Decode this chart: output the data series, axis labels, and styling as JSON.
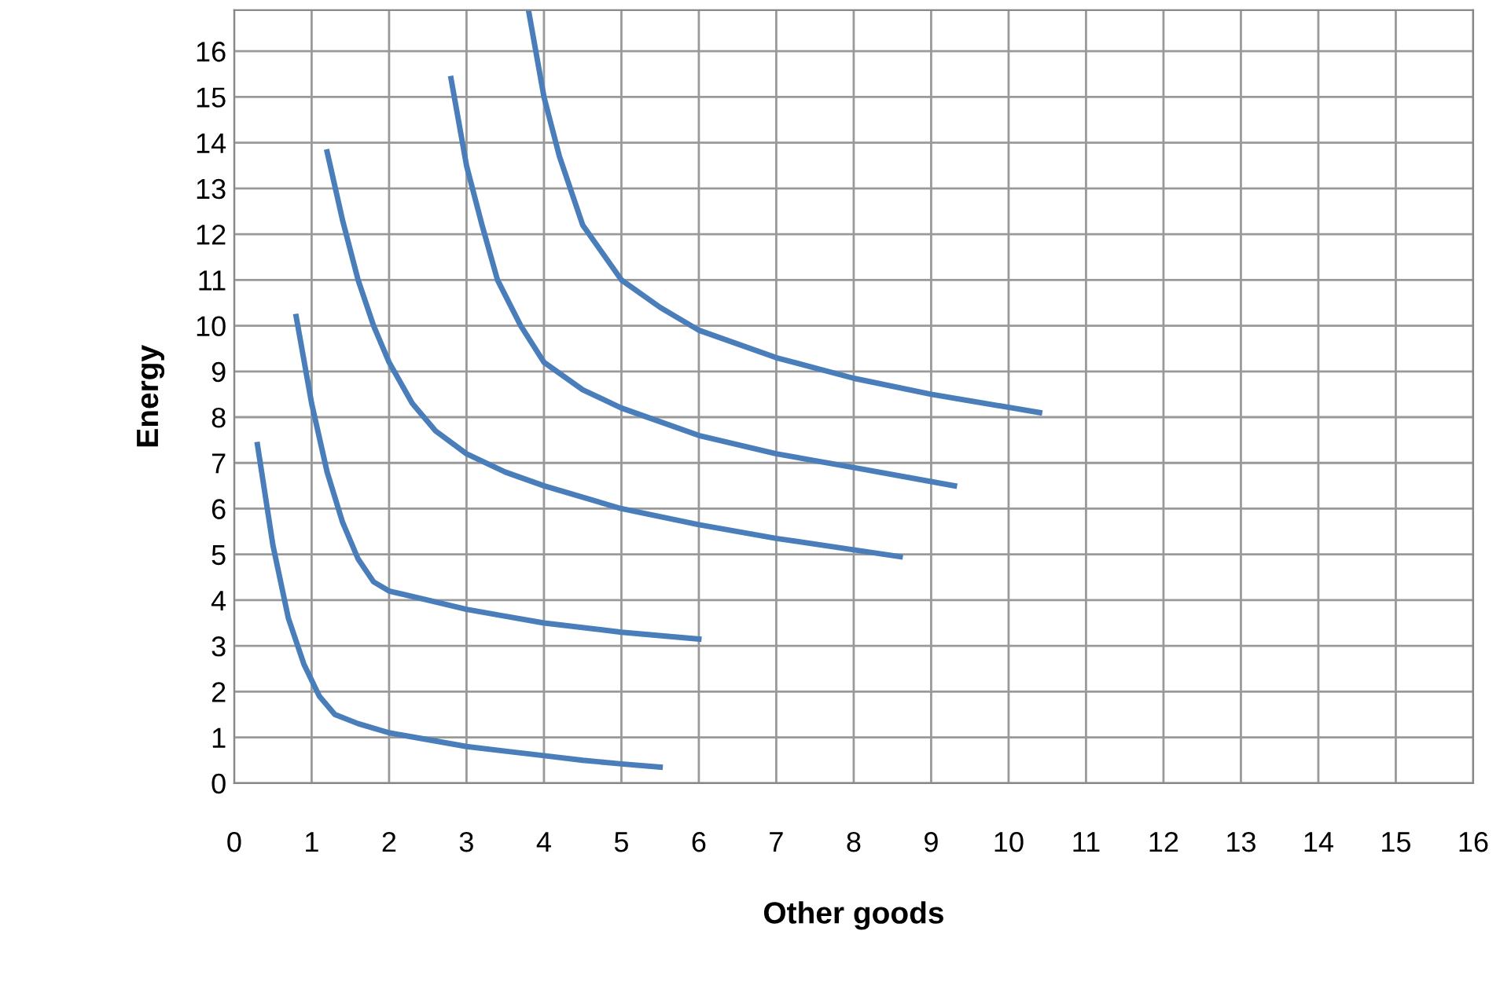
{
  "chart_data": {
    "type": "line",
    "xlabel": "Other goods",
    "ylabel": "Energy",
    "xlim": [
      0,
      16
    ],
    "ylim": [
      0,
      16.9
    ],
    "xticks": [
      0,
      1,
      2,
      3,
      4,
      5,
      6,
      7,
      8,
      9,
      10,
      11,
      12,
      13,
      14,
      15,
      16
    ],
    "yticks": [
      0,
      1,
      2,
      3,
      4,
      5,
      6,
      7,
      8,
      9,
      10,
      11,
      12,
      13,
      14,
      15,
      16
    ],
    "grid": true,
    "marker": "none",
    "line_style": "solid",
    "series": [
      {
        "color": "#4a7ebb",
        "x": [
          0.3,
          0.5,
          0.7,
          0.9,
          1.1,
          1.3,
          1.6,
          2,
          2.5,
          3,
          3.5,
          4,
          4.5,
          5,
          5.5
        ],
        "values": [
          7.4,
          5.2,
          3.6,
          2.6,
          1.9,
          1.5,
          1.3,
          1.1,
          0.95,
          0.8,
          0.7,
          0.6,
          0.5,
          0.42,
          0.35
        ]
      },
      {
        "color": "#4a7ebb",
        "x": [
          0.8,
          1.0,
          1.2,
          1.4,
          1.6,
          1.8,
          2,
          2.5,
          3,
          3.5,
          4,
          5,
          6
        ],
        "values": [
          10.2,
          8.3,
          6.8,
          5.7,
          4.9,
          4.4,
          4.2,
          4.0,
          3.8,
          3.65,
          3.5,
          3.3,
          3.15
        ]
      },
      {
        "color": "#4a7ebb",
        "x": [
          1.2,
          1.4,
          1.6,
          1.8,
          2,
          2.3,
          2.6,
          3,
          3.5,
          4,
          5,
          6,
          7,
          8,
          8.6
        ],
        "values": [
          13.8,
          12.3,
          11.0,
          10.0,
          9.2,
          8.3,
          7.7,
          7.2,
          6.8,
          6.5,
          6.0,
          5.65,
          5.35,
          5.1,
          4.95
        ]
      },
      {
        "color": "#4a7ebb",
        "x": [
          2.8,
          3,
          3.2,
          3.4,
          3.7,
          4,
          4.5,
          5,
          6,
          7,
          8,
          9.3
        ],
        "values": [
          15.4,
          13.5,
          12.2,
          11.0,
          10.0,
          9.2,
          8.6,
          8.2,
          7.6,
          7.2,
          6.9,
          6.5
        ]
      },
      {
        "color": "#4a7ebb",
        "x": [
          3.8,
          4,
          4.2,
          4.5,
          5,
          5.5,
          6,
          7,
          8,
          9,
          10.4
        ],
        "values": [
          16.9,
          15.0,
          13.7,
          12.2,
          11.0,
          10.4,
          9.9,
          9.3,
          8.85,
          8.5,
          8.1
        ]
      }
    ]
  }
}
